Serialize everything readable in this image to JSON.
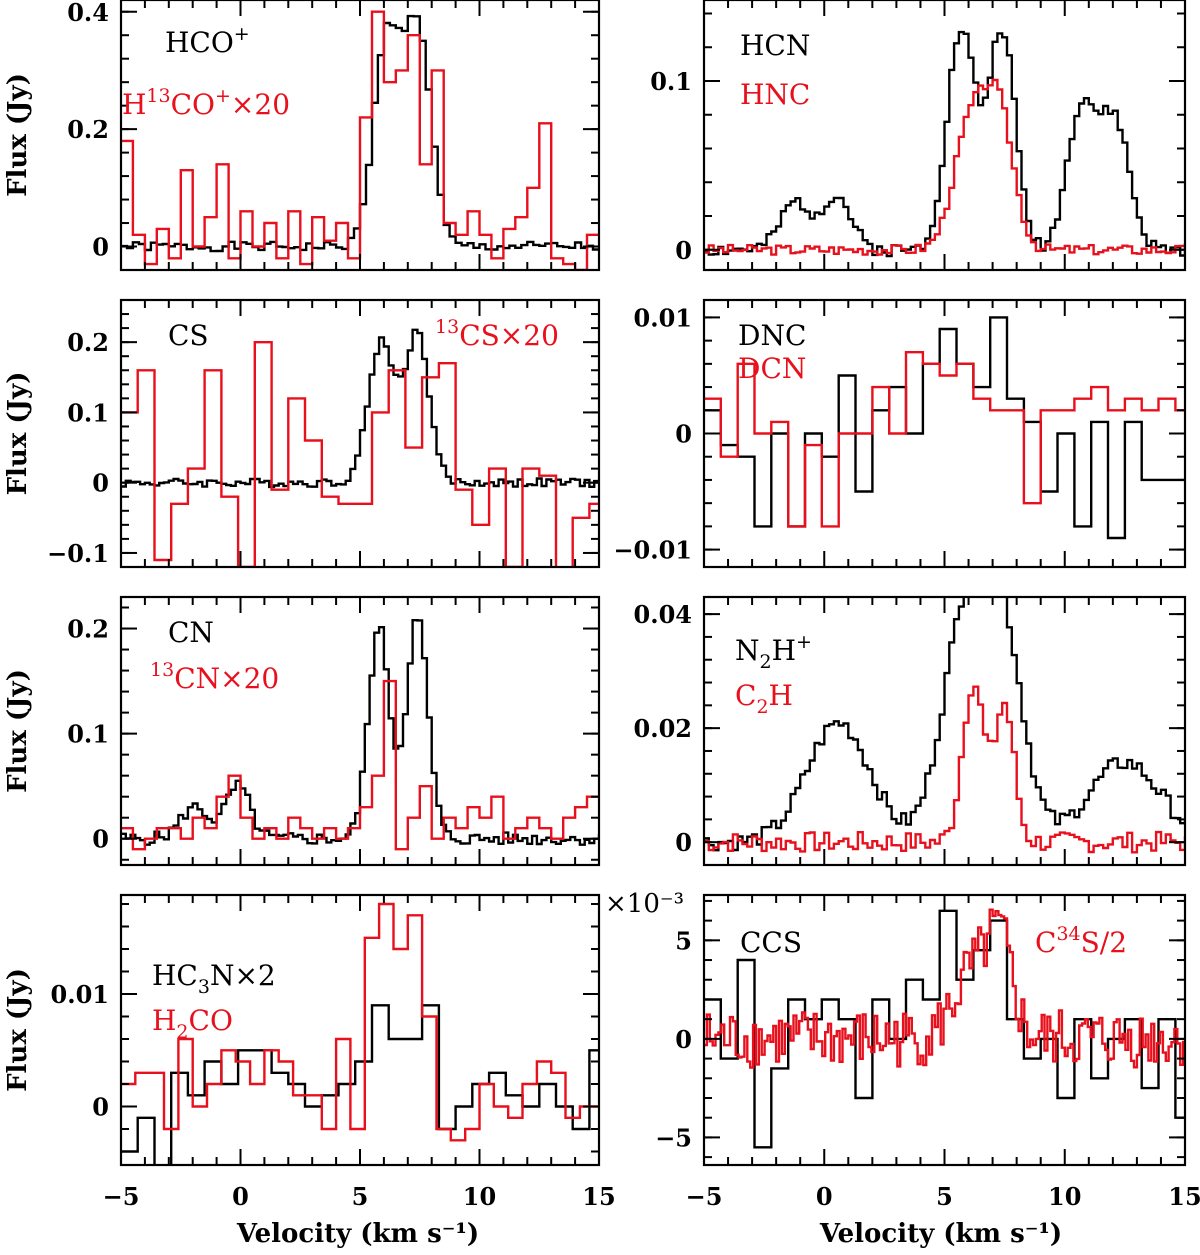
{
  "figure": {
    "x_axis_label": "Velocity (km s⁻¹)",
    "y_axis_label": "Flux (Jy)",
    "x_tick_labels": [
      "−5",
      "0",
      "5",
      "10",
      "15"
    ],
    "exponent_label": "×10⁻³",
    "colors": {
      "primary": "#000000",
      "secondary": "#e8101c"
    }
  },
  "chart_data": [
    {
      "type": "step-line",
      "panel": "top-left",
      "xlim": [
        -5,
        15
      ],
      "ylim": [
        -0.04,
        0.42
      ],
      "y_ticks": [
        0,
        0.2,
        0.4
      ],
      "y_tick_labels": [
        "0",
        "0.2",
        "0.4"
      ],
      "legend": [
        {
          "text": "HCO",
          "sup": "+",
          "color": "black"
        },
        {
          "pre_sup": "",
          "text": "H",
          "sup13": "13",
          "text2": "CO",
          "sup2": "+",
          "suffix": "×20",
          "color": "red"
        }
      ],
      "series": [
        {
          "name": "HCO+",
          "color": "black",
          "peaks": [
            [
              6.0,
              0.36,
              0.55
            ],
            [
              7.3,
              0.37,
              0.55
            ]
          ],
          "noise": 0.008,
          "step": 0.25,
          "seed": 1
        },
        {
          "name": "H13CO+ x20",
          "color": "red",
          "x": [
            -5,
            -4.5,
            -4,
            -3.5,
            -3,
            -2.5,
            -2,
            -1.5,
            -1,
            -0.5,
            0,
            0.5,
            1,
            1.5,
            2,
            2.5,
            3,
            3.5,
            4,
            4.5,
            5,
            5.5,
            6,
            6.5,
            7,
            7.5,
            8,
            8.5,
            9,
            9.5,
            10,
            10.5,
            11,
            11.5,
            12,
            12.5,
            13,
            13.5,
            14,
            14.5
          ],
          "y": [
            0.18,
            0.02,
            -0.03,
            0.03,
            -0.02,
            0.13,
            0.0,
            0.05,
            0.14,
            -0.02,
            0.06,
            0.0,
            0.04,
            -0.02,
            0.06,
            -0.03,
            0.05,
            0.01,
            0.04,
            -0.02,
            0.22,
            0.4,
            0.28,
            0.3,
            0.36,
            0.14,
            0.3,
            0.04,
            0.02,
            0.06,
            0.02,
            -0.02,
            0.03,
            0.05,
            0.1,
            0.21,
            -0.02,
            -0.03,
            -0.04,
            0.02
          ]
        }
      ]
    },
    {
      "type": "step-line",
      "panel": "top-right",
      "xlim": [
        -5,
        15
      ],
      "ylim": [
        -0.012,
        0.148
      ],
      "y_ticks": [
        0,
        0.1
      ],
      "y_tick_labels": [
        "0",
        "0.1"
      ],
      "legend": [
        {
          "text": "HCN",
          "color": "black"
        },
        {
          "text": "HNC",
          "color": "red"
        }
      ],
      "series": [
        {
          "name": "HCN",
          "color": "black",
          "peaks": [
            [
              -1.3,
              0.028,
              0.6
            ],
            [
              0.4,
              0.032,
              0.6
            ],
            [
              5.6,
              0.13,
              0.6
            ],
            [
              7.3,
              0.13,
              0.55
            ],
            [
              10.6,
              0.085,
              0.6
            ],
            [
              12.0,
              0.075,
              0.6
            ]
          ],
          "noise": 0.004,
          "step": 0.2,
          "seed": 2
        },
        {
          "name": "HNC",
          "color": "red",
          "peaks": [
            [
              6.0,
              0.075,
              0.7
            ],
            [
              7.2,
              0.075,
              0.6
            ]
          ],
          "noise": 0.003,
          "step": 0.2,
          "seed": 3
        }
      ]
    },
    {
      "type": "step-line",
      "panel": "mid1-left",
      "xlim": [
        -5,
        15
      ],
      "ylim": [
        -0.12,
        0.26
      ],
      "y_ticks": [
        -0.1,
        0,
        0.1,
        0.2
      ],
      "y_tick_labels": [
        "−0.1",
        "0",
        "0.1",
        "0.2"
      ],
      "legend": [
        {
          "text": "CS",
          "color": "black"
        },
        {
          "text": "CS",
          "sup_pre": "13",
          "suffix": "×20",
          "color": "red"
        }
      ],
      "series": [
        {
          "name": "CS",
          "color": "black",
          "peaks": [
            [
              5.8,
              0.2,
              0.55
            ],
            [
              7.3,
              0.21,
              0.5
            ]
          ],
          "noise": 0.006,
          "step": 0.2,
          "seed": 4
        },
        {
          "name": "13CS x20",
          "color": "red",
          "x": [
            -5,
            -4.3,
            -3.6,
            -2.9,
            -2.2,
            -1.5,
            -0.8,
            -0.1,
            0.6,
            1.3,
            2.0,
            2.7,
            3.4,
            4.1,
            4.8,
            5.5,
            6.2,
            6.9,
            7.6,
            8.3,
            9.0,
            9.7,
            10.4,
            11.1,
            11.8,
            12.5,
            13.2,
            13.9,
            14.6
          ],
          "y": [
            0.1,
            0.16,
            -0.11,
            -0.03,
            0.02,
            0.16,
            -0.02,
            -0.12,
            0.2,
            -0.01,
            0.12,
            0.06,
            -0.02,
            -0.03,
            -0.03,
            0.1,
            0.16,
            0.05,
            0.15,
            0.17,
            -0.01,
            -0.06,
            0.02,
            -0.12,
            0.02,
            0.01,
            -0.14,
            -0.05,
            -0.03
          ]
        }
      ]
    },
    {
      "type": "step-line",
      "panel": "mid1-right",
      "xlim": [
        -5,
        15
      ],
      "ylim": [
        -0.0115,
        0.0115
      ],
      "y_ticks": [
        -0.01,
        0,
        0.01
      ],
      "y_tick_labels": [
        "−0.01",
        "0",
        "0.01"
      ],
      "legend": [
        {
          "text": "DNC",
          "color": "black"
        },
        {
          "text": "DCN",
          "color": "red"
        }
      ],
      "series": [
        {
          "name": "DNC",
          "color": "black",
          "x": [
            -5,
            -4.3,
            -3.6,
            -2.9,
            -2.2,
            -1.5,
            -0.8,
            -0.1,
            0.6,
            1.3,
            2.0,
            2.7,
            3.4,
            4.1,
            4.8,
            5.5,
            6.2,
            6.9,
            7.6,
            8.3,
            9.0,
            9.7,
            10.4,
            11.1,
            11.8,
            12.5,
            13.2,
            13.9,
            14.6
          ],
          "y": [
            0.002,
            -0.001,
            -0.002,
            -0.008,
            0.0,
            -0.008,
            0.0,
            -0.002,
            0.005,
            -0.005,
            0.002,
            0.004,
            0.0,
            0.006,
            0.009,
            0.006,
            0.004,
            0.01,
            0.003,
            0.001,
            -0.005,
            0.0,
            -0.008,
            0.001,
            -0.009,
            0.001,
            -0.004,
            -0.004,
            -0.004
          ]
        },
        {
          "name": "DCN",
          "color": "red",
          "x": [
            -5,
            -4.3,
            -3.6,
            -2.9,
            -2.2,
            -1.5,
            -0.8,
            -0.1,
            0.6,
            1.3,
            2.0,
            2.7,
            3.4,
            4.1,
            4.8,
            5.5,
            6.2,
            6.9,
            7.6,
            8.3,
            9.0,
            9.7,
            10.4,
            11.1,
            11.8,
            12.5,
            13.2,
            13.9,
            14.6
          ],
          "y": [
            0.003,
            -0.002,
            0.006,
            0.0,
            0.001,
            -0.008,
            -0.001,
            -0.008,
            0.0,
            0.0,
            0.004,
            0.0,
            0.007,
            0.006,
            0.005,
            0.006,
            0.003,
            0.002,
            0.002,
            -0.006,
            0.002,
            0.002,
            0.003,
            0.004,
            0.002,
            0.003,
            0.002,
            0.003,
            0.002
          ]
        }
      ]
    },
    {
      "type": "step-line",
      "panel": "mid2-left",
      "xlim": [
        -5,
        15
      ],
      "ylim": [
        -0.025,
        0.23
      ],
      "y_ticks": [
        0,
        0.1,
        0.2
      ],
      "y_tick_labels": [
        "0",
        "0.1",
        "0.2"
      ],
      "legend": [
        {
          "text": "CN",
          "color": "black"
        },
        {
          "text": "CN",
          "sup_pre": "13",
          "suffix": "×20",
          "color": "red"
        }
      ],
      "series": [
        {
          "name": "CN",
          "color": "black",
          "peaks": [
            [
              -2.0,
              0.03,
              0.6
            ],
            [
              -0.2,
              0.05,
              0.5
            ],
            [
              5.7,
              0.2,
              0.45
            ],
            [
              7.3,
              0.21,
              0.45
            ]
          ],
          "noise": 0.006,
          "step": 0.2,
          "seed": 5
        },
        {
          "name": "13CN x20",
          "color": "red",
          "x": [
            -5,
            -4.5,
            -4,
            -3.5,
            -3,
            -2.5,
            -2,
            -1.5,
            -1,
            -0.5,
            0,
            0.5,
            1,
            1.5,
            2,
            2.5,
            3,
            3.5,
            4,
            4.5,
            5,
            5.5,
            6,
            6.5,
            7,
            7.5,
            8,
            8.5,
            9,
            9.5,
            10,
            10.5,
            11,
            11.5,
            12,
            12.5,
            13,
            13.5,
            14,
            14.5
          ],
          "y": [
            0.01,
            -0.01,
            0.0,
            0.01,
            0.01,
            0.0,
            0.02,
            0.01,
            0.04,
            0.06,
            0.02,
            0.0,
            0.01,
            0.0,
            0.02,
            0.01,
            0.0,
            0.01,
            0.0,
            0.01,
            0.03,
            0.06,
            0.15,
            -0.01,
            0.02,
            0.05,
            0.0,
            0.02,
            0.01,
            0.03,
            0.02,
            0.04,
            0.0,
            0.01,
            0.02,
            0.01,
            0.0,
            0.02,
            0.03,
            0.04
          ]
        }
      ]
    },
    {
      "type": "step-line",
      "panel": "mid2-right",
      "xlim": [
        -5,
        15
      ],
      "ylim": [
        -0.004,
        0.043
      ],
      "y_ticks": [
        0,
        0.02,
        0.04
      ],
      "y_tick_labels": [
        "0",
        "0.02",
        "0.04"
      ],
      "legend": [
        {
          "text": "N",
          "sub": "2",
          "text2": "H",
          "sup2": "+",
          "color": "black"
        },
        {
          "text": "C",
          "sub": "2",
          "text2": "H",
          "color": "red"
        }
      ],
      "series": [
        {
          "name": "N2H+",
          "color": "black",
          "peaks": [
            [
              0.5,
              0.021,
              1.3
            ],
            [
              5.8,
              0.038,
              1.0
            ],
            [
              7.3,
              0.033,
              0.9
            ],
            [
              12.4,
              0.014,
              1.5
            ]
          ],
          "noise": 0.0015,
          "step": 0.2,
          "seed": 6
        },
        {
          "name": "C2H",
          "color": "red",
          "peaks": [
            [
              6.1,
              0.028,
              0.45
            ],
            [
              7.4,
              0.024,
              0.4
            ]
          ],
          "noise": 0.0018,
          "step": 0.2,
          "seed": 7
        }
      ]
    },
    {
      "type": "step-line",
      "panel": "bottom-left",
      "xlim": [
        -5,
        15
      ],
      "ylim": [
        -0.0052,
        0.0188
      ],
      "y_ticks": [
        0,
        0.01
      ],
      "y_tick_labels": [
        "0",
        "0.01"
      ],
      "legend": [
        {
          "text": "HC",
          "sub": "3",
          "text2": "N",
          "suffix": "×2",
          "color": "black"
        },
        {
          "text": "H",
          "sub": "2",
          "text2": "CO",
          "color": "red"
        }
      ],
      "series": [
        {
          "name": "HC3N x2",
          "color": "black",
          "x": [
            -5,
            -4.3,
            -3.6,
            -2.9,
            -2.2,
            -1.5,
            -0.8,
            -0.1,
            0.6,
            1.3,
            2.0,
            2.7,
            3.4,
            4.1,
            4.8,
            5.5,
            6.2,
            6.9,
            7.6,
            8.3,
            9.0,
            9.7,
            10.4,
            11.1,
            11.8,
            12.5,
            13.2,
            13.9,
            14.6
          ],
          "y": [
            -0.004,
            -0.001,
            -0.006,
            0.003,
            0.001,
            0.004,
            0.002,
            0.005,
            0.005,
            0.003,
            0.002,
            0.0,
            0.001,
            0.002,
            0.004,
            0.009,
            0.006,
            0.006,
            0.009,
            -0.002,
            0.0,
            0.002,
            0.003,
            0.001,
            0.0,
            0.002,
            0.0,
            -0.002,
            0.005
          ]
        },
        {
          "name": "H2CO",
          "color": "red",
          "x": [
            -5,
            -4.4,
            -3.8,
            -3.2,
            -2.6,
            -2.0,
            -1.4,
            -0.8,
            -0.2,
            0.4,
            1.0,
            1.6,
            2.2,
            2.8,
            3.4,
            4.0,
            4.6,
            5.2,
            5.8,
            6.4,
            7.0,
            7.6,
            8.2,
            8.8,
            9.4,
            10.0,
            10.6,
            11.2,
            11.8,
            12.4,
            13.0,
            13.6,
            14.2
          ],
          "y": [
            0.002,
            0.003,
            0.003,
            -0.002,
            0.006,
            0.0,
            0.002,
            0.005,
            0.004,
            0.002,
            0.005,
            0.004,
            0.001,
            0.001,
            -0.002,
            0.006,
            -0.002,
            0.015,
            0.018,
            0.014,
            0.017,
            0.008,
            -0.002,
            -0.003,
            -0.002,
            0.002,
            0.0,
            -0.001,
            0.002,
            0.004,
            0.003,
            -0.001,
            0.0
          ]
        }
      ]
    },
    {
      "type": "step-line",
      "panel": "bottom-right",
      "xlim": [
        -5,
        15
      ],
      "ylim": [
        -0.0064,
        0.0073
      ],
      "y_ticks": [
        -0.005,
        0,
        0.005
      ],
      "y_tick_labels": [
        "−5",
        "0",
        "5"
      ],
      "legend": [
        {
          "text": "CCS",
          "color": "black"
        },
        {
          "text": "C",
          "sup": "34",
          "text2": "S/2",
          "color": "red"
        }
      ],
      "series": [
        {
          "name": "CCS",
          "color": "black",
          "x": [
            -5,
            -4.3,
            -3.6,
            -2.9,
            -2.2,
            -1.5,
            -0.8,
            -0.1,
            0.6,
            1.3,
            2.0,
            2.7,
            3.4,
            4.1,
            4.8,
            5.5,
            6.2,
            6.9,
            7.6,
            8.3,
            9.0,
            9.7,
            10.4,
            11.1,
            11.8,
            12.5,
            13.2,
            13.9,
            14.6
          ],
          "y": [
            0.002,
            -0.001,
            0.004,
            -0.0055,
            -0.0015,
            0.002,
            0.001,
            0.002,
            0.001,
            -0.003,
            0.002,
            0.0,
            0.003,
            0.002,
            0.0065,
            0.003,
            0.0045,
            0.006,
            0.001,
            -0.001,
            0.0,
            -0.003,
            0.001,
            -0.002,
            0.0,
            0.001,
            -0.0025,
            0.001,
            -0.004
          ]
        },
        {
          "name": "C34S/2",
          "color": "red",
          "peaks": [
            [
              6.2,
              0.0035,
              0.8
            ],
            [
              7.3,
              0.004,
              0.5
            ]
          ],
          "noise": 0.0015,
          "step": 0.12,
          "seed": 8
        }
      ]
    }
  ]
}
